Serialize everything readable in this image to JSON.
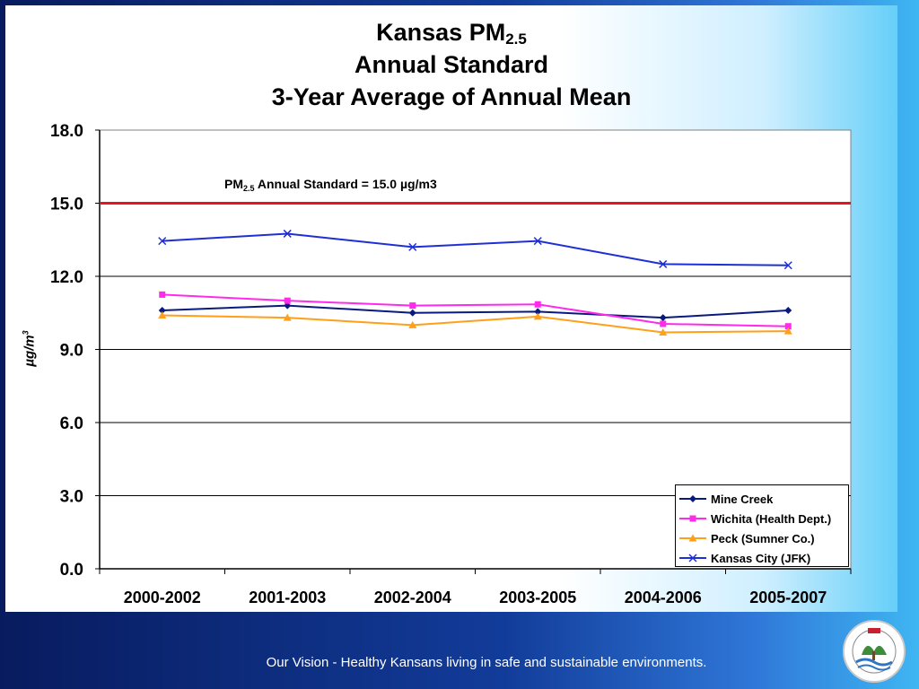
{
  "slide": {
    "title_prefix": "Kansas PM",
    "title_sub": "2.5",
    "title_line2": "Annual Standard",
    "title_line3": "3-Year Average of Annual Mean",
    "footer": "Our Vision - Healthy Kansans living in safe and sustainable environments.",
    "logo_text": "KANSAS DEPARTMENT OF HEALTH & ENVIRONMENT"
  },
  "chart_data": {
    "type": "line",
    "categories": [
      "2000-2002",
      "2001-2003",
      "2002-2004",
      "2003-2005",
      "2004-2006",
      "2005-2007"
    ],
    "ylabel_main": "µg/m",
    "ylabel_sup": "3",
    "ylim": [
      0,
      18
    ],
    "yticks": [
      0.0,
      3.0,
      6.0,
      9.0,
      12.0,
      15.0,
      18.0
    ],
    "grid": true,
    "legend_position": "bottom-right",
    "standard_line": {
      "value": 15.0,
      "label_prefix": "PM",
      "label_sub": "2.5",
      "label_rest": " Annual Standard = 15.0 µg/m3",
      "color": "#e8161b"
    },
    "series": [
      {
        "name": "Mine Creek",
        "marker": "diamond",
        "color": "#0a1a7c",
        "values": [
          10.6,
          10.8,
          10.5,
          10.55,
          10.3,
          10.6
        ]
      },
      {
        "name": "Wichita (Health Dept.)",
        "marker": "square",
        "color": "#ff2aeb",
        "values": [
          11.25,
          11.0,
          10.8,
          10.85,
          10.05,
          9.95
        ]
      },
      {
        "name": "Peck (Sumner Co.)",
        "marker": "triangle",
        "color": "#ff9f1a",
        "values": [
          10.4,
          10.3,
          10.0,
          10.35,
          9.7,
          9.75
        ]
      },
      {
        "name": "Kansas City (JFK)",
        "marker": "x",
        "color": "#1e2fd6",
        "values": [
          13.45,
          13.75,
          13.2,
          13.45,
          12.5,
          12.45
        ]
      }
    ]
  }
}
